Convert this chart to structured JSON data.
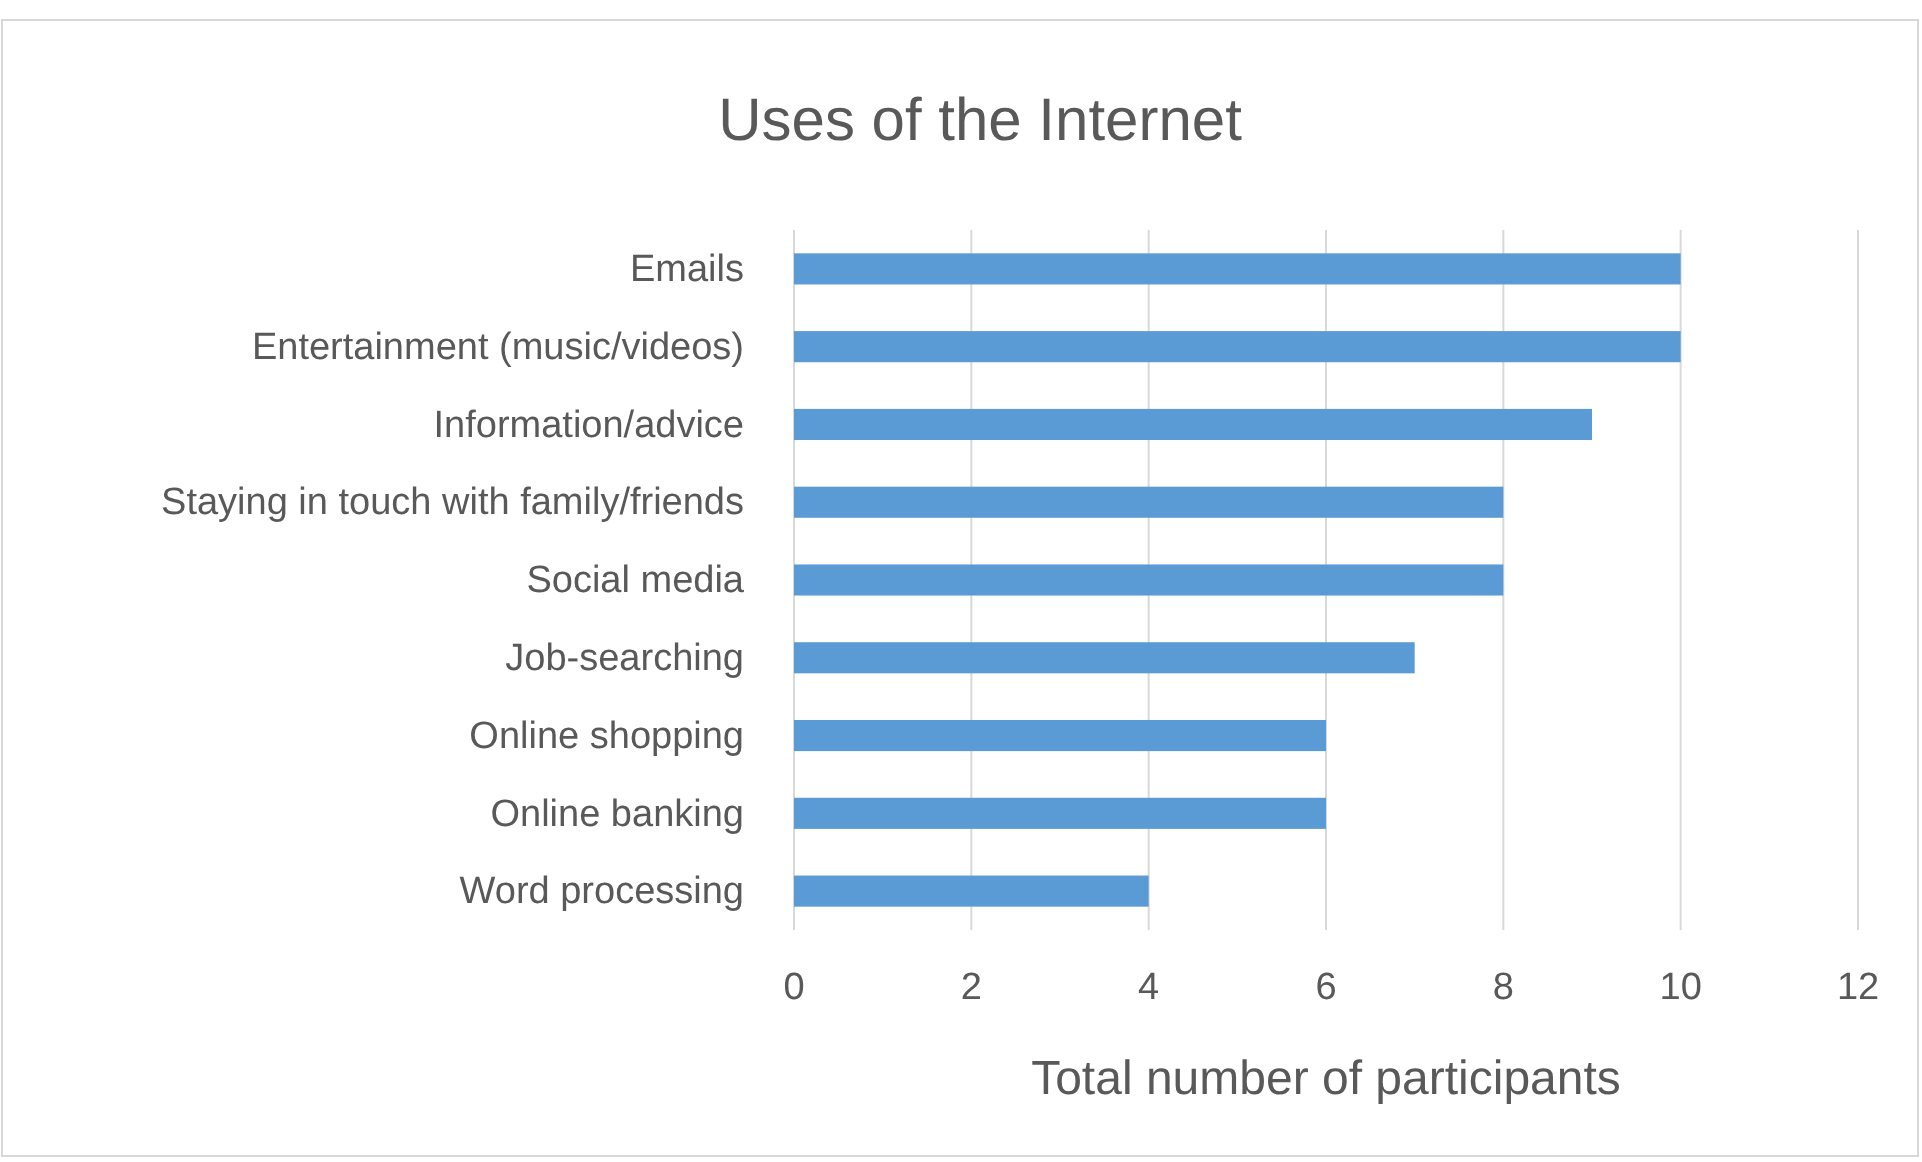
{
  "chart_data": {
    "type": "bar",
    "orientation": "horizontal",
    "title": "Uses of the Internet",
    "xlabel": "Total number of participants",
    "categories": [
      "Emails",
      "Entertainment (music/videos)",
      "Information/advice",
      "Staying in touch with family/friends",
      "Social media",
      "Job-searching",
      "Online shopping",
      "Online banking",
      "Word processing"
    ],
    "values": [
      10,
      10,
      9,
      8,
      8,
      7,
      6,
      6,
      4
    ],
    "color": "#5b9bd5",
    "xlim": [
      0,
      12
    ],
    "xticks": [
      0,
      2,
      4,
      6,
      8,
      10,
      12
    ],
    "grid": "x"
  }
}
